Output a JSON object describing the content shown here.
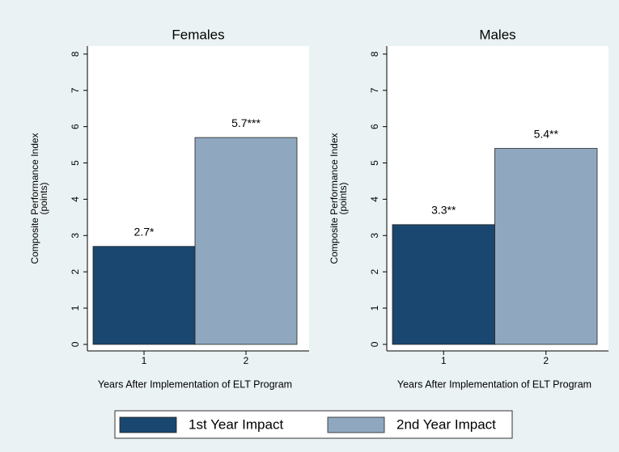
{
  "chart_data": [
    {
      "type": "bar",
      "title": "Females",
      "x_label": "Years After Implementation of ELT Program",
      "y_label": [
        "Composite Performance Index",
        "(points)"
      ],
      "categories": [
        "1",
        "2"
      ],
      "values": [
        2.7,
        5.7
      ],
      "value_labels": [
        "2.7*",
        "5.7***"
      ],
      "colors": [
        "#1a476f",
        "#90a8bf"
      ],
      "ylim": [
        -0.18,
        8.22
      ],
      "yticks": [
        0,
        1,
        2,
        3,
        4,
        5,
        6,
        7,
        8
      ]
    },
    {
      "type": "bar",
      "title": "Males",
      "x_label": "Years After Implementation of ELT Program",
      "y_label": [
        "Composite Performance Index",
        "(points)"
      ],
      "categories": [
        "1",
        "2"
      ],
      "values": [
        3.3,
        5.4
      ],
      "value_labels": [
        "3.3**",
        "5.4**"
      ],
      "colors": [
        "#1a476f",
        "#90a8bf"
      ],
      "ylim": [
        -0.18,
        8.22
      ],
      "yticks": [
        0,
        1,
        2,
        3,
        4,
        5,
        6,
        7,
        8
      ]
    }
  ],
  "legend": {
    "entries": [
      {
        "name": "1st Year Impact",
        "color": "#1a476f"
      },
      {
        "name": "2nd Year Impact",
        "color": "#90a8bf"
      }
    ]
  }
}
